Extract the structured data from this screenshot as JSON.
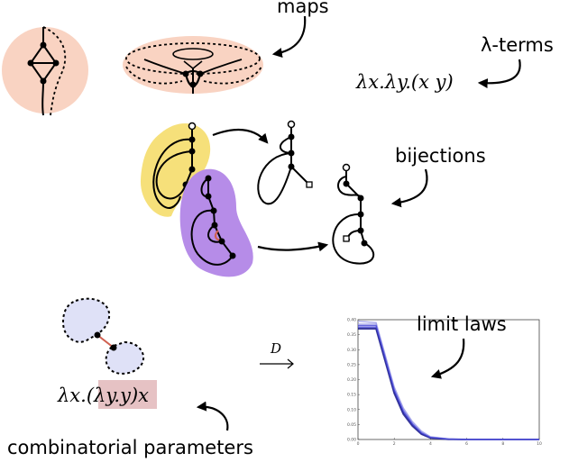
{
  "labels": {
    "maps": "maps",
    "lambda_terms": "λ-terms",
    "lambda_term_example": "λx.λy.(x y)",
    "bijections": "bijections",
    "limit_laws": "limit laws",
    "combinatorial_parameters": "combinatorial parameters",
    "convergence": "D",
    "param_term_prefix": "λx.",
    "param_term_highlight": "(λy.y)",
    "param_term_suffix": "x"
  },
  "colors": {
    "map_fill": "#f9d3c2",
    "yellow_fill": "#f6e07a",
    "purple_fill": "#b68ce8",
    "blob_fill": "#dfe1f7",
    "highlight_fill": "#e6c2c4",
    "red_edge": "#d06050",
    "curve_dark": "#1a1a8a",
    "curve_mid": "#4a4ad8",
    "curve_light": "#9a9ae8"
  },
  "chart_data": {
    "type": "line",
    "x_ticks": [
      "0",
      "2",
      "4",
      "6",
      "8",
      "10"
    ],
    "y_ticks": [
      "0.00",
      "0.05",
      "0.10",
      "0.15",
      "0.20",
      "0.25",
      "0.30",
      "0.35",
      "0.40"
    ],
    "xlim": [
      0,
      10
    ],
    "ylim": [
      0,
      0.4
    ],
    "series": [
      {
        "x": [
          0,
          1,
          2,
          2.5,
          3,
          3.5,
          4,
          5,
          6,
          7,
          8,
          9,
          10
        ],
        "values": [
          0.385,
          0.385,
          0.17,
          0.1,
          0.055,
          0.025,
          0.008,
          0.002,
          0,
          0,
          0,
          0,
          0
        ]
      },
      {
        "x": [
          0,
          1,
          2,
          2.5,
          3,
          3.5,
          4,
          5,
          6,
          7,
          8,
          9,
          10
        ],
        "values": [
          0.375,
          0.375,
          0.16,
          0.09,
          0.05,
          0.02,
          0.006,
          0.001,
          0,
          0,
          0,
          0,
          0
        ]
      },
      {
        "x": [
          0,
          1,
          2,
          2.5,
          3,
          3.5,
          4,
          5,
          6,
          7,
          8,
          9,
          10
        ],
        "values": [
          0.37,
          0.37,
          0.155,
          0.085,
          0.045,
          0.018,
          0.005,
          0.001,
          0,
          0,
          0,
          0,
          0
        ]
      },
      {
        "x": [
          0,
          1,
          2,
          2.5,
          3,
          3.5,
          4,
          5,
          6,
          7,
          8,
          9,
          10
        ],
        "values": [
          0.395,
          0.39,
          0.175,
          0.105,
          0.06,
          0.028,
          0.009,
          0.002,
          0,
          0,
          0,
          0,
          0
        ]
      },
      {
        "x": [
          0,
          1,
          2,
          2.5,
          3,
          3.5,
          4,
          5,
          6,
          7,
          8,
          9,
          10
        ],
        "values": [
          0.38,
          0.38,
          0.165,
          0.095,
          0.052,
          0.022,
          0.007,
          0.0015,
          0,
          0,
          0,
          0,
          0
        ]
      }
    ]
  }
}
